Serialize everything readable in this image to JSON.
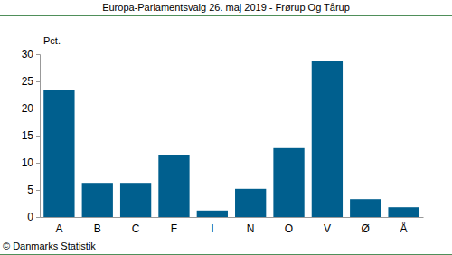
{
  "chart_data": {
    "type": "bar",
    "title": "Europa-Parlamentsvalg 26. maj 2019 - Frørup Og Tårup",
    "ylabel": "Pct.",
    "source": "© Danmarks Statistik",
    "categories": [
      "A",
      "B",
      "C",
      "F",
      "I",
      "N",
      "O",
      "V",
      "Ø",
      "Å"
    ],
    "values": [
      23.5,
      6.3,
      6.3,
      11.5,
      1.2,
      5.2,
      12.7,
      28.7,
      3.3,
      1.8
    ],
    "color": "#005f8e",
    "ylim": [
      0,
      30
    ],
    "yticks": [
      0,
      5,
      10,
      15,
      20,
      25,
      30
    ],
    "grid": false
  }
}
